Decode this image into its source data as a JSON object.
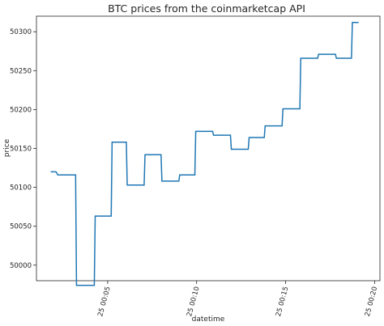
{
  "chart_data": {
    "type": "line",
    "title": "BTC prices from the coinmarketcap API",
    "xlabel": "datetime",
    "ylabel": "price",
    "x_unit": "minutes after 25 00:00",
    "xlim": [
      1.0,
      20.3
    ],
    "ylim": [
      49980,
      50320
    ],
    "x_ticks": [
      {
        "value": 5,
        "label": "25 00:05"
      },
      {
        "value": 10,
        "label": "25 00:10"
      },
      {
        "value": 15,
        "label": "25 00:15"
      },
      {
        "value": 20,
        "label": "25 00:20"
      }
    ],
    "y_ticks": [
      {
        "value": 50000,
        "label": "50000"
      },
      {
        "value": 50050,
        "label": "50050"
      },
      {
        "value": 50100,
        "label": "50100"
      },
      {
        "value": 50150,
        "label": "50150"
      },
      {
        "value": 50200,
        "label": "50200"
      },
      {
        "value": 50250,
        "label": "50250"
      },
      {
        "value": 50300,
        "label": "50300"
      }
    ],
    "grid": false,
    "legend": "none",
    "series": [
      {
        "color": "#1f77b4",
        "points": [
          [
            1.8,
            50120
          ],
          [
            2.1,
            50120
          ],
          [
            2.2,
            50116
          ],
          [
            3.2,
            50116
          ],
          [
            3.25,
            49974
          ],
          [
            4.25,
            49974
          ],
          [
            4.3,
            50063
          ],
          [
            5.2,
            50063
          ],
          [
            5.25,
            50158
          ],
          [
            6.05,
            50158
          ],
          [
            6.1,
            50103
          ],
          [
            7.05,
            50103
          ],
          [
            7.1,
            50142
          ],
          [
            8.0,
            50142
          ],
          [
            8.05,
            50108
          ],
          [
            9.0,
            50108
          ],
          [
            9.05,
            50116
          ],
          [
            9.9,
            50116
          ],
          [
            9.95,
            50172
          ],
          [
            10.9,
            50172
          ],
          [
            10.95,
            50167
          ],
          [
            11.9,
            50167
          ],
          [
            11.95,
            50149
          ],
          [
            12.9,
            50149
          ],
          [
            12.95,
            50164
          ],
          [
            13.8,
            50164
          ],
          [
            13.85,
            50179
          ],
          [
            14.8,
            50179
          ],
          [
            14.85,
            50201
          ],
          [
            15.8,
            50201
          ],
          [
            15.85,
            50266
          ],
          [
            16.8,
            50266
          ],
          [
            16.85,
            50271
          ],
          [
            17.8,
            50271
          ],
          [
            17.85,
            50266
          ],
          [
            18.7,
            50266
          ],
          [
            18.75,
            50312
          ],
          [
            19.1,
            50312
          ]
        ]
      }
    ]
  }
}
